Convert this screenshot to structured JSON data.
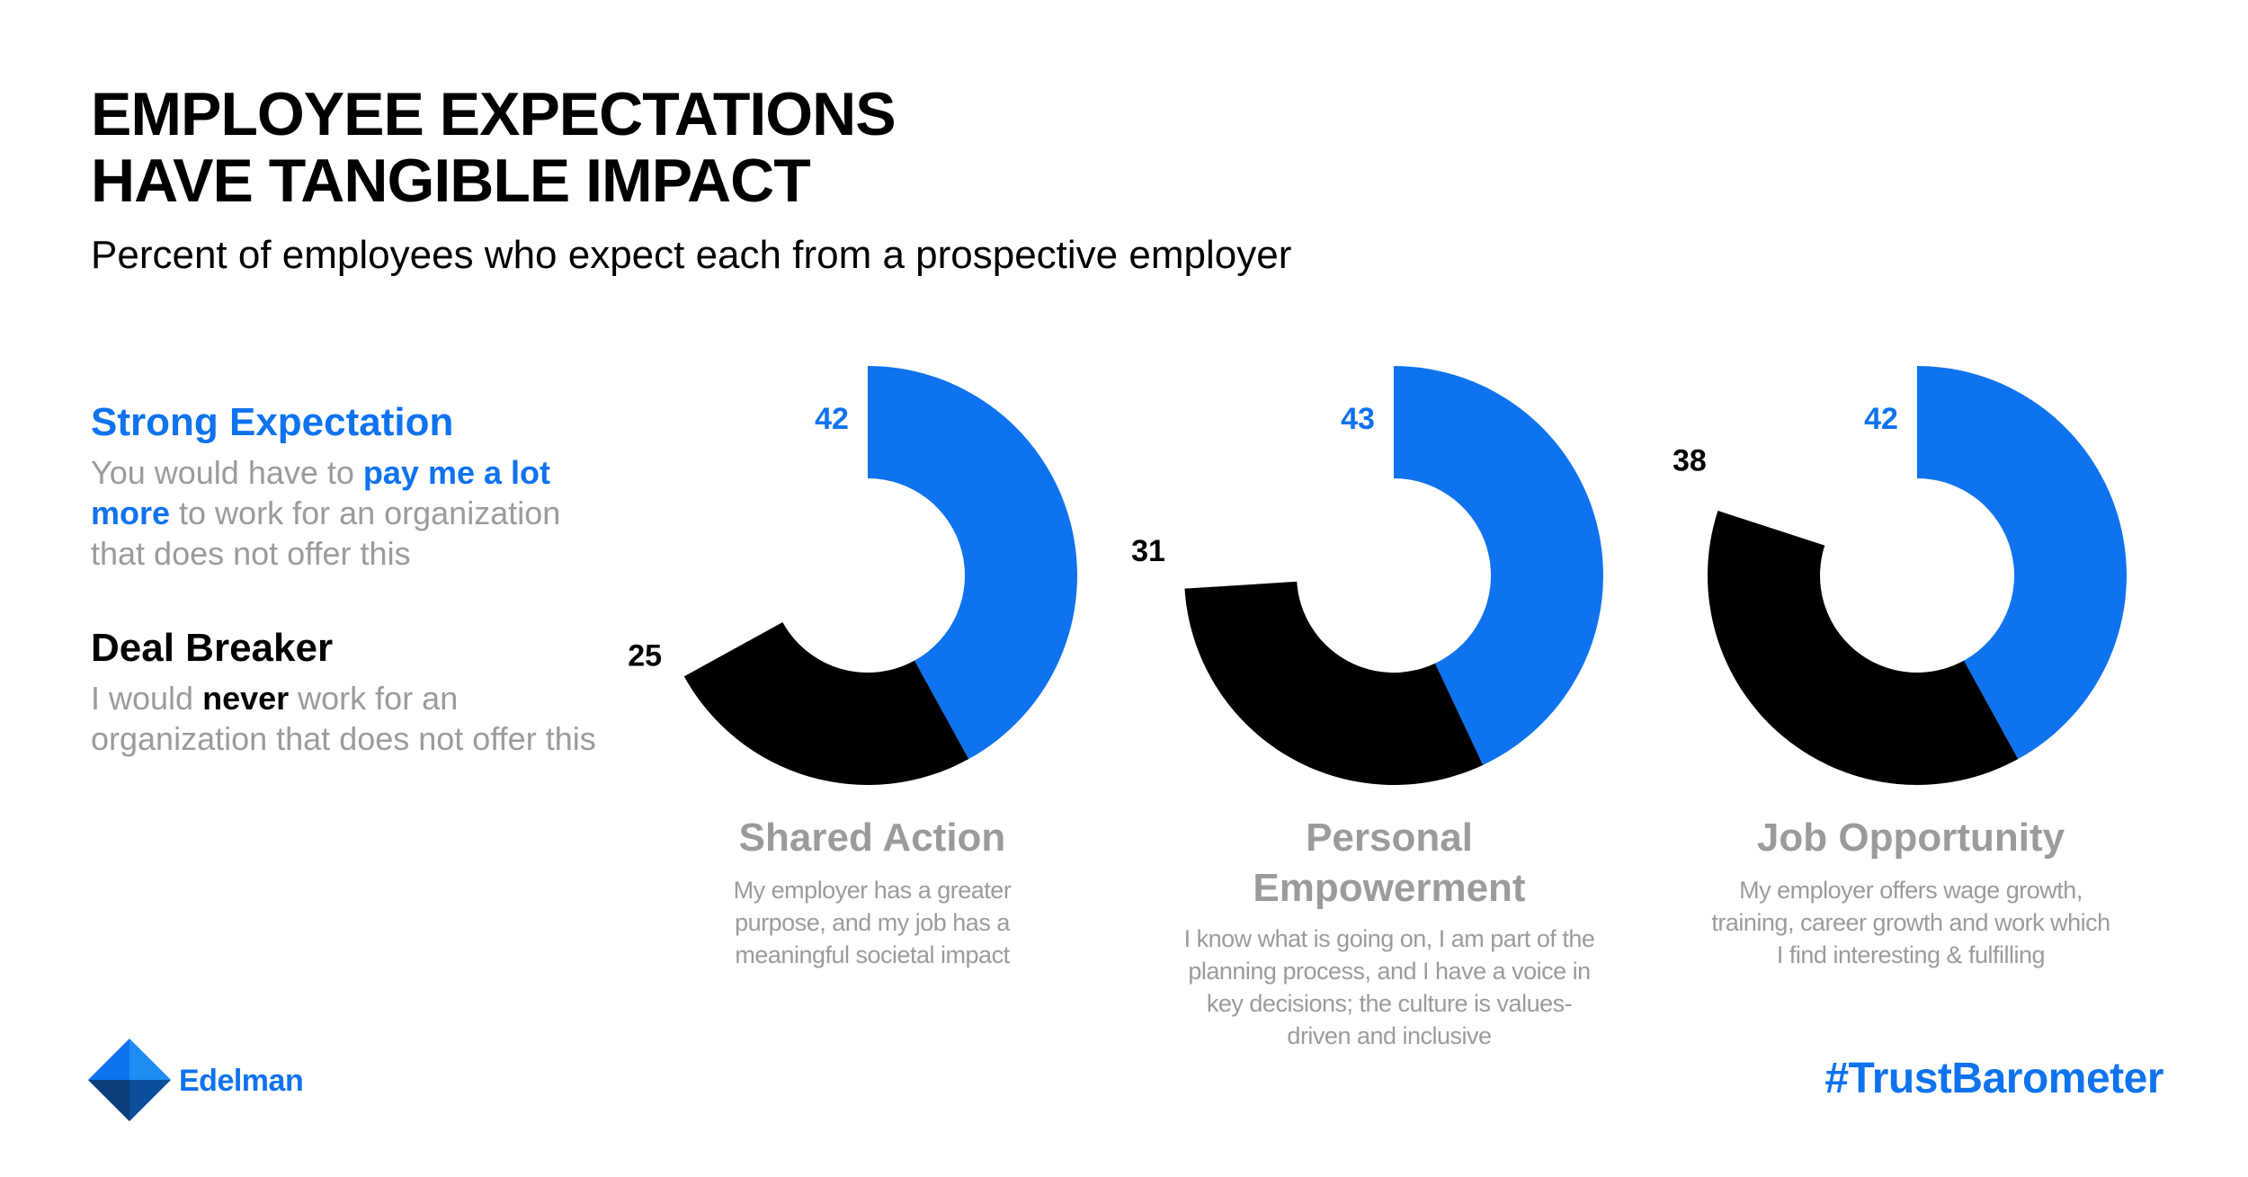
{
  "title": [
    "EMPLOYEE EXPECTATIONS",
    "HAVE TANGIBLE IMPACT"
  ],
  "subtitle": "Percent of employees who expect each from a prospective employer",
  "legend": {
    "strong": {
      "heading": "Strong Expectation",
      "text_before": "You would have to ",
      "text_bold": "pay me a lot more",
      "text_after": " to work for an organization that does not offer this"
    },
    "deal": {
      "heading": "Deal Breaker",
      "text_before": "I would ",
      "text_bold": "never",
      "text_after": " work for an organization that does not offer this"
    }
  },
  "colors": {
    "blue": "#0f72ee",
    "black": "#000000",
    "gray": "#9b9b9b"
  },
  "chart_data": {
    "type": "donut",
    "series_names": [
      "Strong Expectation",
      "Deal Breaker"
    ],
    "categories": [
      {
        "name": "Shared Action",
        "description": "My employer has a greater purpose, and my job has a meaningful societal impact",
        "strong_expectation": 42,
        "deal_breaker": 25
      },
      {
        "name": "Personal Empowerment",
        "description": "I know what is going on, I am part of the planning process, and I have a voice in key decisions; the culture is values-driven and inclusive",
        "strong_expectation": 43,
        "deal_breaker": 31
      },
      {
        "name": "Job Opportunity",
        "description": "My employer offers wage growth, training, career growth and work which I find interesting & fulfilling",
        "strong_expectation": 42,
        "deal_breaker": 38
      }
    ]
  },
  "logo": {
    "name": "Edelman"
  },
  "hashtag": "#TrustBarometer"
}
